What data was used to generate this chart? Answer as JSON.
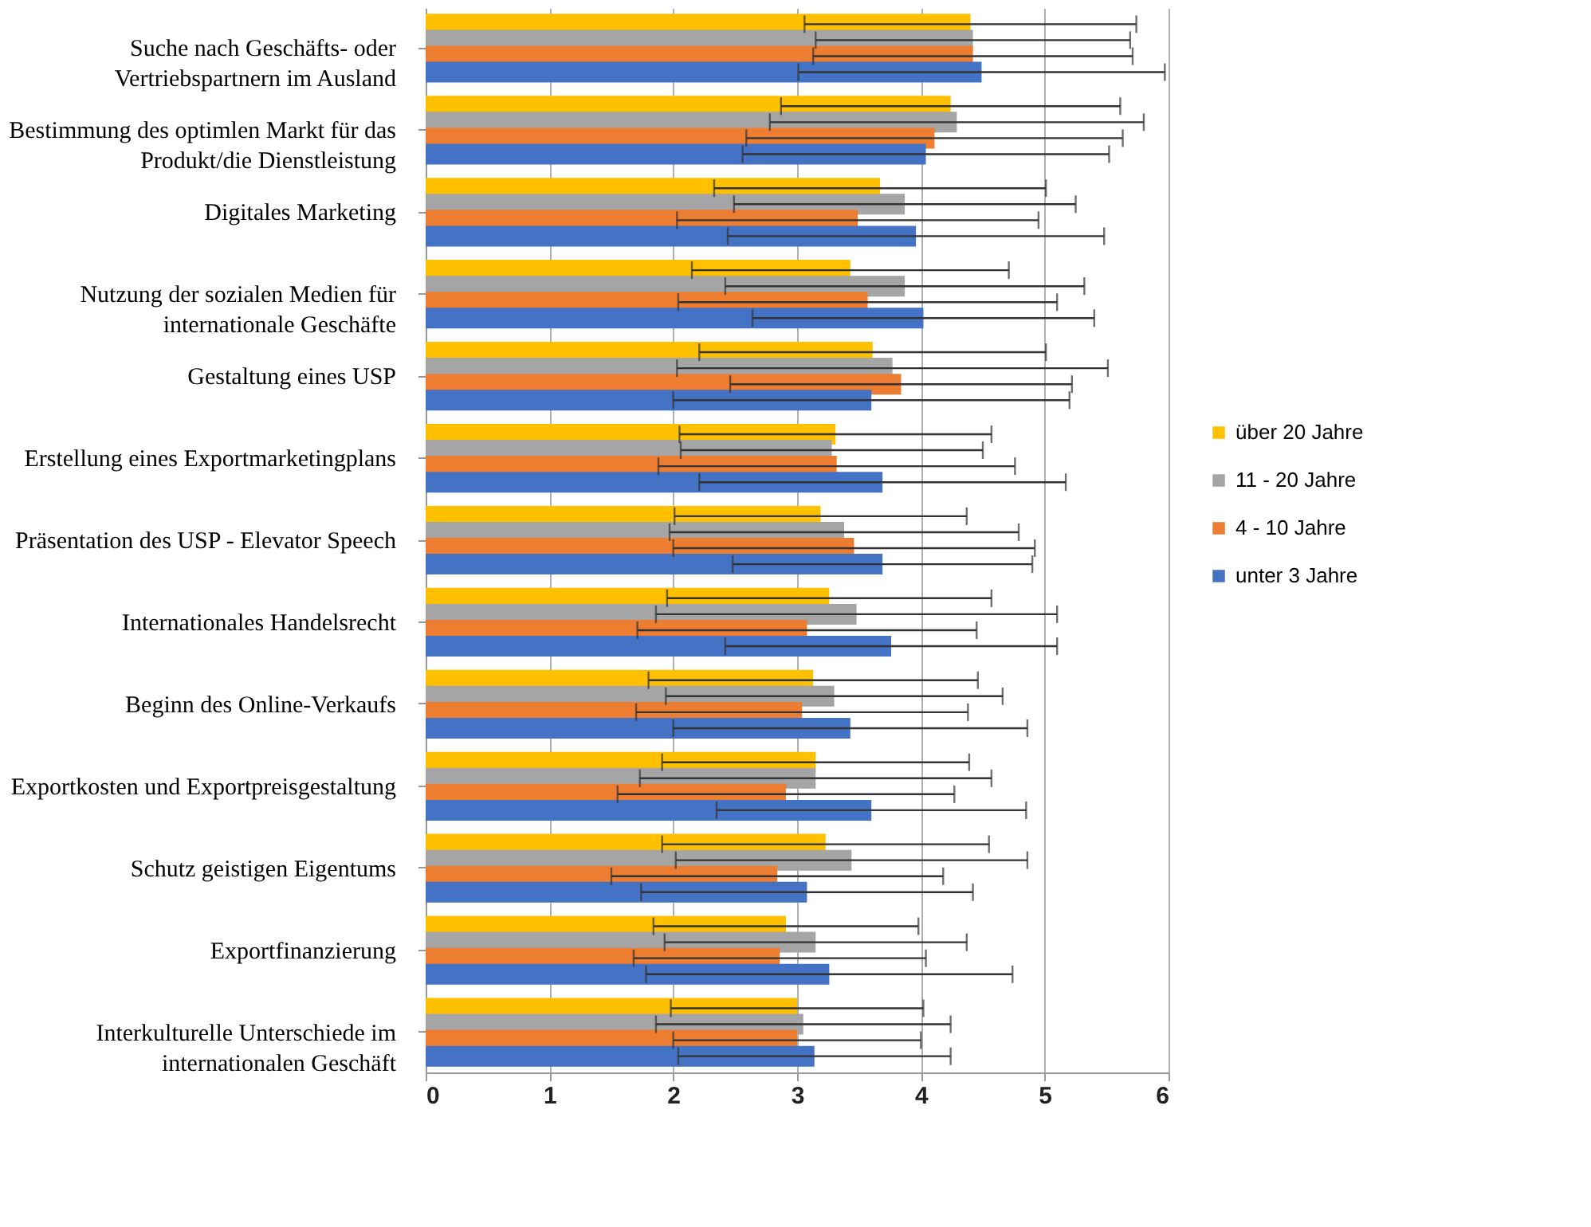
{
  "chart_data": {
    "type": "bar",
    "orientation": "horizontal",
    "categories": [
      "Suche nach Geschäfts- oder Vertriebspartnern im Ausland",
      "Bestimmung des optimlen Markt für das Produkt/die Dienstleistung",
      "Digitales Marketing",
      "Nutzung der sozialen Medien für internationale Geschäfte",
      "Gestaltung eines USP",
      "Erstellung eines Exportmarketingplans",
      "Präsentation des USP - Elevator Speech",
      "Internationales Handelsrecht",
      "Beginn des Online-Verkaufs",
      "Exportkosten und Exportpreisgestaltung",
      "Schutz geistigen Eigentums",
      "Exportfinanzierung",
      "Interkulturelle Unterschiede im internationalen Geschäft"
    ],
    "series": [
      {
        "name": "über 20 Jahre",
        "color": "#ffc000",
        "values": [
          4.4,
          4.24,
          3.67,
          3.43,
          3.61,
          3.31,
          3.19,
          3.26,
          3.13,
          3.15,
          3.23,
          2.91,
          3.0
        ],
        "errors": [
          1.34,
          1.37,
          1.34,
          1.28,
          1.4,
          1.26,
          1.18,
          1.31,
          1.33,
          1.24,
          1.32,
          1.07,
          1.02
        ]
      },
      {
        "name": "11 - 20 Jahre",
        "color": "#a5a5a5",
        "values": [
          4.42,
          4.29,
          3.87,
          3.87,
          3.77,
          3.28,
          3.38,
          3.48,
          3.3,
          3.15,
          3.44,
          3.15,
          3.05
        ],
        "errors": [
          1.27,
          1.51,
          1.38,
          1.45,
          1.74,
          1.22,
          1.41,
          1.62,
          1.36,
          1.42,
          1.42,
          1.22,
          1.19
        ]
      },
      {
        "name": "4 - 10 Jahre",
        "color": "#ed7d31",
        "values": [
          4.42,
          4.11,
          3.49,
          3.57,
          3.84,
          3.32,
          3.46,
          3.08,
          3.04,
          2.91,
          2.84,
          2.86,
          3.0
        ],
        "errors": [
          1.29,
          1.52,
          1.46,
          1.53,
          1.38,
          1.44,
          1.46,
          1.37,
          1.34,
          1.36,
          1.34,
          1.18,
          1.0
        ]
      },
      {
        "name": "unter 3 Jahre",
        "color": "#4472c4",
        "values": [
          4.49,
          4.04,
          3.96,
          4.02,
          3.6,
          3.69,
          3.69,
          3.76,
          3.43,
          3.6,
          3.08,
          3.26,
          3.14
        ],
        "errors": [
          1.48,
          1.48,
          1.52,
          1.38,
          1.6,
          1.48,
          1.21,
          1.34,
          1.43,
          1.25,
          1.34,
          1.48,
          1.1
        ]
      }
    ],
    "xlim": [
      0,
      6
    ],
    "xticks": [
      0,
      1,
      2,
      3,
      4,
      5,
      6
    ],
    "grid": "x",
    "legend": "right"
  }
}
